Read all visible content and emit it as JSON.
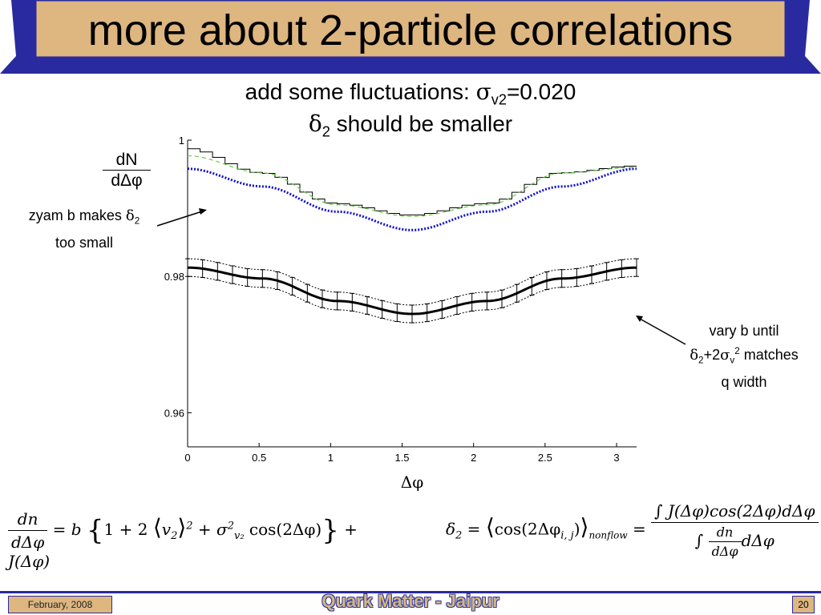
{
  "slide": {
    "title": "more about 2-particle correlations",
    "subtitle_line1_text": "add some fluctuations: ",
    "subtitle_line1_sigma": "σ",
    "subtitle_line1_sub": "v2",
    "subtitle_line1_value": "=0.020",
    "subtitle_line2_delta": "δ",
    "subtitle_line2_sub": "2",
    "subtitle_line2_text": " should be smaller",
    "colors": {
      "banner": "#ddb680",
      "banner_border": "#2a2aa0",
      "accent_blue": "#1010d0",
      "green_dashed": "#66cc44"
    }
  },
  "annotations": {
    "left_line1": "zyam b makes ",
    "left_delta": "δ",
    "left_sub": "2",
    "left_line2": "too small",
    "right_line1": "vary b until",
    "right_delta": "δ",
    "right_sub": "2",
    "right_plus": "+2",
    "right_sigma": "σ",
    "right_sub_v": "v",
    "right_sup": "2",
    "right_matches": " matches",
    "right_line3": "q width"
  },
  "y_axis_label": {
    "numerator": "dN",
    "denominator": "dΔφ"
  },
  "chart_data": {
    "type": "line",
    "xlabel": "Δφ",
    "ylabel": "dN/dΔφ",
    "xlim": [
      0,
      3.14
    ],
    "ylim": [
      0.955,
      1.0
    ],
    "x_ticks": [
      0,
      0.5,
      1,
      1.5,
      2,
      2.5,
      3
    ],
    "x_tick_labels": [
      "0",
      "0.5",
      "1",
      "1.5",
      "2",
      "2.5",
      "3"
    ],
    "y_ticks": [
      0.96,
      0.98,
      1
    ],
    "y_tick_labels": [
      "0.96",
      "0.98",
      "1"
    ],
    "series": [
      {
        "style": "histogram",
        "color": "#000000",
        "x": [
          0.0,
          0.524,
          1.047,
          1.571,
          2.094,
          2.618,
          3.14
        ],
        "values": [
          0.9988,
          0.9952,
          0.9907,
          0.989,
          0.9907,
          0.9952,
          0.9962
        ]
      },
      {
        "style": "dashed",
        "color": "#66cc44",
        "x": [
          0.0,
          0.524,
          1.047,
          1.571,
          2.094,
          2.618,
          3.14
        ],
        "values": [
          0.9977,
          0.9952,
          0.9905,
          0.9888,
          0.9905,
          0.9952,
          0.996
        ]
      },
      {
        "style": "dotted",
        "color": "#1010d0",
        "x": [
          0.0,
          0.524,
          1.047,
          1.571,
          2.094,
          2.618,
          3.14
        ],
        "values": [
          0.9958,
          0.9932,
          0.9895,
          0.9868,
          0.9895,
          0.9932,
          0.9958
        ]
      },
      {
        "style": "thick-with-errorbars",
        "color": "#000000",
        "x": [
          0.0,
          0.524,
          1.047,
          1.571,
          2.094,
          2.618,
          3.14
        ],
        "values": [
          0.9813,
          0.9797,
          0.9764,
          0.9745,
          0.9764,
          0.9797,
          0.9813
        ],
        "error": 0.0013
      }
    ]
  },
  "formula1": {
    "num": "dn",
    "den": "dΔφ",
    "eq_b": " = b",
    "lbrace": "{",
    "one": "1 + 2",
    "v2": "v",
    "v2_sub": "2",
    "sq": "2",
    "plus_sigma": " + σ",
    "sigma_sup": "2",
    "sigma_sub": "v₂",
    "cos": "cos(2Δφ)",
    "rbrace": "}",
    "plus_j": " + J(Δφ)"
  },
  "formula2": {
    "delta": "δ",
    "delta_sub": "2",
    "eq": " = ",
    "cos": "cos(2Δφ",
    "cos_sub": "i, j",
    "close": ")",
    "nonflow": "nonflow",
    "eq2": " = ",
    "top": "∫ J(Δφ)cos(2Δφ)dΔφ",
    "bot_int": "∫",
    "bot_num": "dn",
    "bot_den": "dΔφ",
    "bot_tail": "dΔφ"
  },
  "footer": {
    "date": "February, 2008",
    "title": "Quark Matter - Jaipur",
    "page": "20"
  }
}
